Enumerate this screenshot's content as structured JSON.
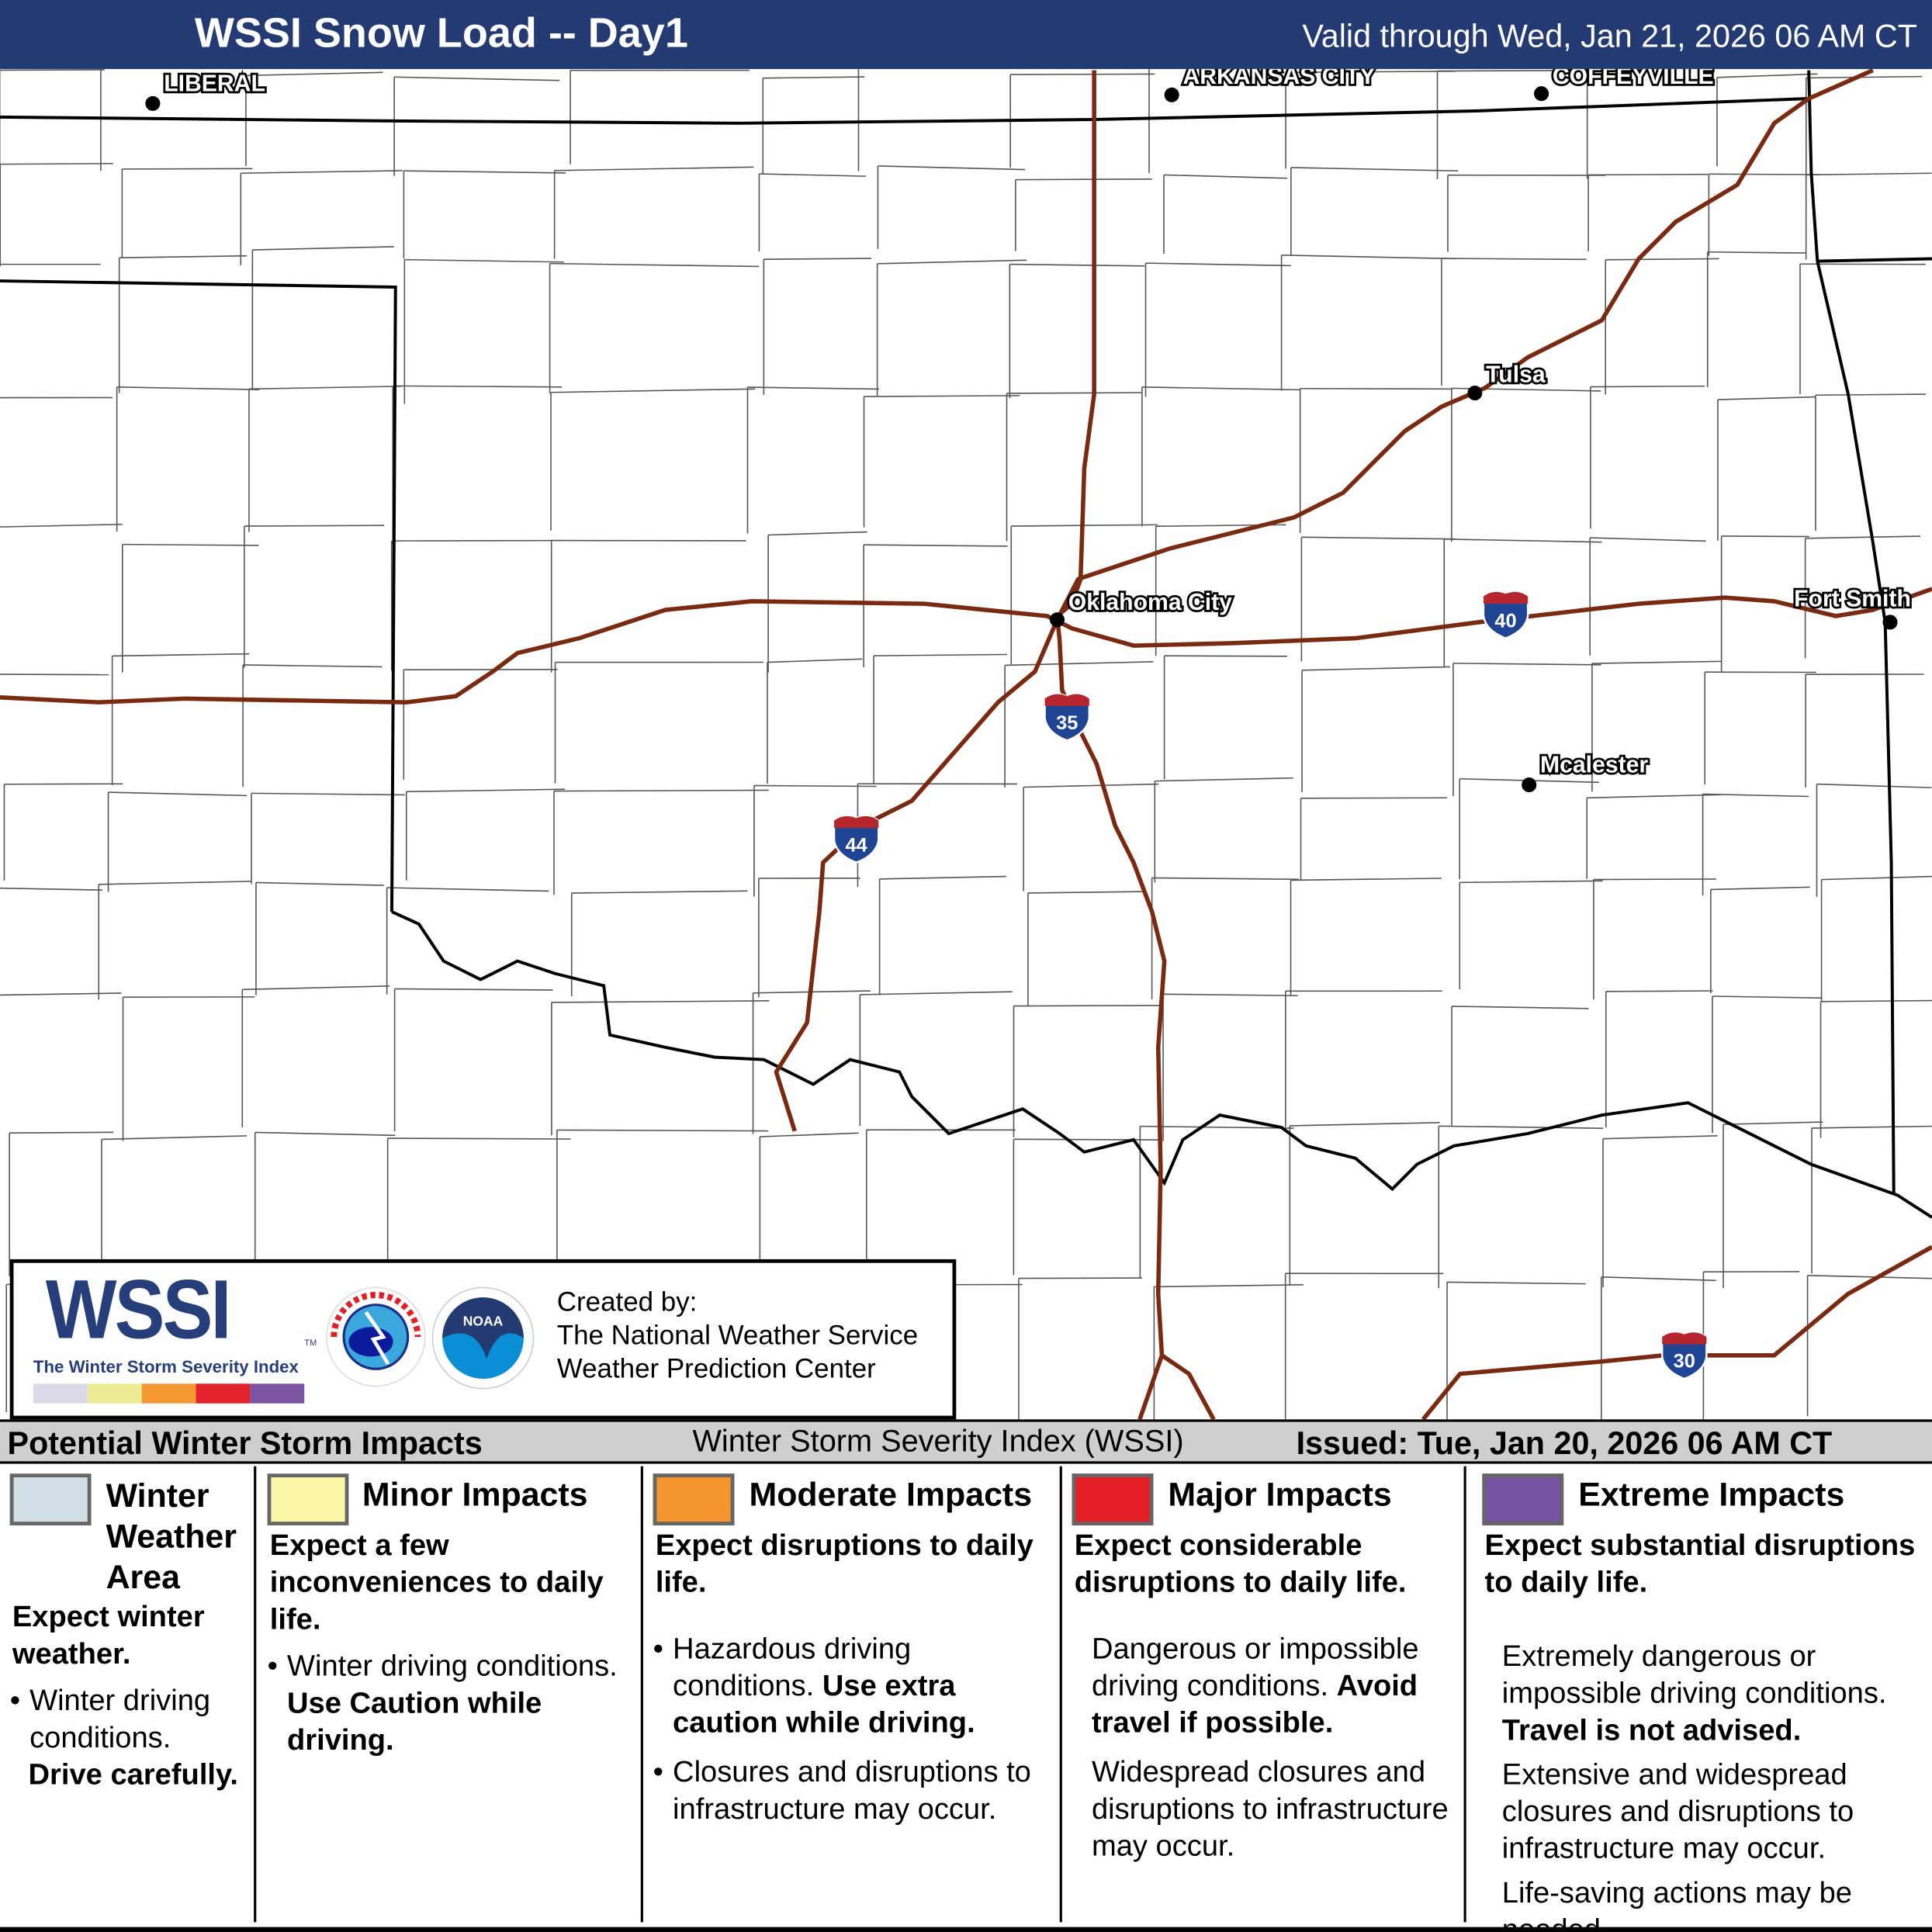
{
  "header": {
    "title": "WSSI Snow Load -- Day1",
    "valid": "Valid through Wed, Jan 21, 2026 06 AM CT",
    "bg": "#233a72"
  },
  "map": {
    "cities": [
      {
        "name": "LIBERAL"
      },
      {
        "name": "ARKANSAS CITY"
      },
      {
        "name": "COFFEYVILLE"
      },
      {
        "name": "Tulsa"
      },
      {
        "name": "Oklahoma City"
      },
      {
        "name": "Fort Smith"
      },
      {
        "name": "Mcalester"
      }
    ],
    "interstates": [
      {
        "number": "40"
      },
      {
        "number": "35"
      },
      {
        "number": "44"
      },
      {
        "number": "30"
      }
    ],
    "colors": {
      "interstate": "#7a2a10",
      "state_border": "#000000",
      "county_border": "#555555",
      "shield_blue": "#1f4493",
      "shield_red": "#b5262e"
    }
  },
  "branding": {
    "logo_text": "WSSI",
    "tm": "TM",
    "tagline": "The Winter Storm Severity Index",
    "scale_colors": [
      "#dcd9e8",
      "#eeeb96",
      "#f59a33",
      "#e3232c",
      "#7b55a1"
    ],
    "nws_logo": "NATIONAL WEATHER SERVICE",
    "noaa_logo": "NOAA",
    "created_by": "Created by:",
    "org1": "The National Weather Service",
    "org2": "Weather Prediction Center"
  },
  "legend": {
    "heading": "Potential Winter Storm Impacts",
    "subtitle": "Winter Storm Severity Index (WSSI)",
    "issued": "Issued: Tue, Jan 20, 2026 06 AM CT",
    "categories": [
      {
        "color": "#d3dfe6",
        "title": "Winter Weather Area",
        "summary": "Expect winter weather.",
        "bullet": "Winter driving conditions.",
        "bold": "Drive carefully."
      },
      {
        "color": "#fbf7a6",
        "title": "Minor Impacts",
        "summary": "Expect a few inconveniences to daily life.",
        "bullet": "Winter driving conditions.",
        "bold": "Use Caution while driving."
      },
      {
        "color": "#f6962f",
        "title": "Moderate Impacts",
        "summary": "Expect disruptions to daily life.",
        "bullet": "Hazardous driving conditions.",
        "bold": "Use extra caution while driving.",
        "bullet2": "Closures and disruptions to infrastructure may occur."
      },
      {
        "color": "#e31e26",
        "title": "Major Impacts",
        "summary": "Expect considerable disruptions to daily life.",
        "text": "Dangerous or impossible driving conditions.",
        "bold": "Avoid travel if possible.",
        "text2": "Widespread closures and disruptions to infrastructure may occur."
      },
      {
        "color": "#7752a0",
        "title": "Extreme Impacts",
        "summary": "Expect substantial disruptions to daily life.",
        "text": "Extremely dangerous or impossible driving conditions.",
        "bold": "Travel is not advised.",
        "text2": "Extensive and widespread closures and disruptions to infrastructure may occur.",
        "text3": "Life-saving actions may be needed."
      }
    ]
  }
}
